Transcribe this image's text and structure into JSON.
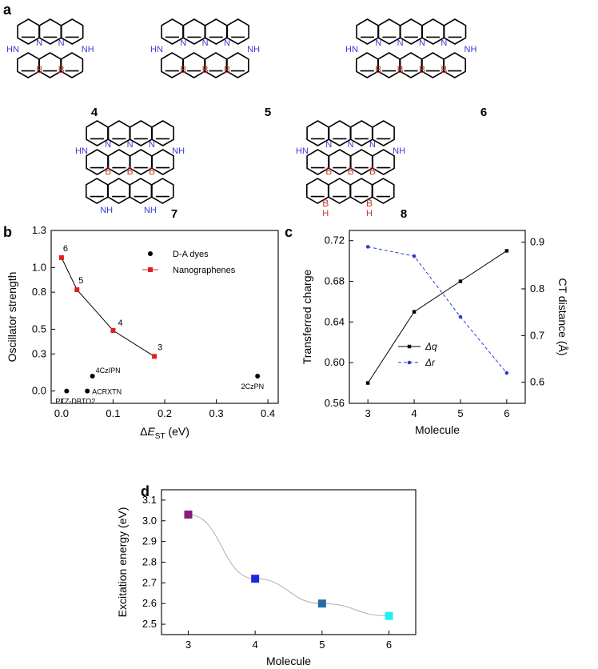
{
  "panels": {
    "a": {
      "label": "a",
      "molecules": [
        {
          "id": "4",
          "cols": 3,
          "rows": 2,
          "extra_bottom": false
        },
        {
          "id": "5",
          "cols": 4,
          "rows": 2,
          "extra_bottom": false
        },
        {
          "id": "6",
          "cols": 5,
          "rows": 2,
          "extra_bottom": false
        },
        {
          "id": "7",
          "cols": 4,
          "rows": 3,
          "extra_bottom": true
        },
        {
          "id": "8",
          "cols": 4,
          "rows": 3,
          "extra_bottom": true
        }
      ],
      "atom_labels": {
        "boron": "B",
        "nitrogen": "N",
        "amine": "NH",
        "amine_left": "HN",
        "borane_h": "H"
      }
    },
    "b": {
      "label": "b"
    },
    "c": {
      "label": "c"
    },
    "d": {
      "label": "d"
    }
  },
  "chart_data": [
    {
      "panel": "b",
      "type": "scatter",
      "xlabel": "ΔE_ST (eV)",
      "ylabel": "Oscillator strength",
      "xlim": [
        -0.02,
        0.42
      ],
      "ylim": [
        -0.1,
        1.3
      ],
      "xticks": [
        0.0,
        0.1,
        0.2,
        0.3,
        0.4
      ],
      "yticks": [
        0.0,
        0.3,
        0.5,
        0.8,
        1.0,
        1.3
      ],
      "legend_position": "top-right",
      "series": [
        {
          "name": "D-A dyes",
          "marker": "circle",
          "color": "#000000",
          "line": false,
          "points": [
            {
              "x": 0.01,
              "y": 0.0,
              "label": "PTZ-DBTO2"
            },
            {
              "x": 0.05,
              "y": 0.0,
              "label": "ACRXTN"
            },
            {
              "x": 0.06,
              "y": 0.12,
              "label": "4CzIPN"
            },
            {
              "x": 0.38,
              "y": 0.12,
              "label": "2CzPN"
            }
          ]
        },
        {
          "name": "Nanographenes",
          "marker": "square",
          "color": "#e02020",
          "line": true,
          "points": [
            {
              "x": 0.0,
              "y": 1.08,
              "label": "6"
            },
            {
              "x": 0.03,
              "y": 0.82,
              "label": "5"
            },
            {
              "x": 0.1,
              "y": 0.49,
              "label": "4"
            },
            {
              "x": 0.18,
              "y": 0.28,
              "label": "3"
            }
          ]
        }
      ]
    },
    {
      "panel": "c",
      "type": "line",
      "xlabel": "Molecule",
      "ylabel": "Transferred charge",
      "ylabel_right": "CT distance (Å)",
      "x": [
        3,
        4,
        5,
        6
      ],
      "ylim": [
        0.56,
        0.73
      ],
      "yticks": [
        0.56,
        0.6,
        0.64,
        0.68,
        0.72
      ],
      "ylim_right": [
        0.555,
        0.925
      ],
      "yticks_right": [
        0.6,
        0.7,
        0.8,
        0.9
      ],
      "legend_position": "center-left",
      "series": [
        {
          "name": "Δq",
          "axis": "left",
          "style": "solid",
          "marker": "square",
          "color": "#000000",
          "values": [
            0.58,
            0.65,
            0.68,
            0.71
          ]
        },
        {
          "name": "Δr",
          "axis": "right",
          "style": "dashed",
          "marker": "circle",
          "color": "#2a3bd8",
          "values": [
            0.89,
            0.87,
            0.74,
            0.62
          ]
        }
      ]
    },
    {
      "panel": "d",
      "type": "line",
      "xlabel": "Molecule",
      "ylabel": "Excitation energy (eV)",
      "x": [
        3,
        4,
        5,
        6
      ],
      "ylim": [
        2.45,
        3.15
      ],
      "yticks": [
        2.5,
        2.6,
        2.7,
        2.8,
        2.9,
        3.0,
        3.1
      ],
      "series": [
        {
          "name": "",
          "marker": "square",
          "line_color": "#b0b0b0",
          "values": [
            3.03,
            2.72,
            2.6,
            2.54
          ],
          "colors": [
            "#8a1a7a",
            "#1a28e0",
            "#2a6aa8",
            "#22f0f0"
          ]
        }
      ]
    }
  ]
}
